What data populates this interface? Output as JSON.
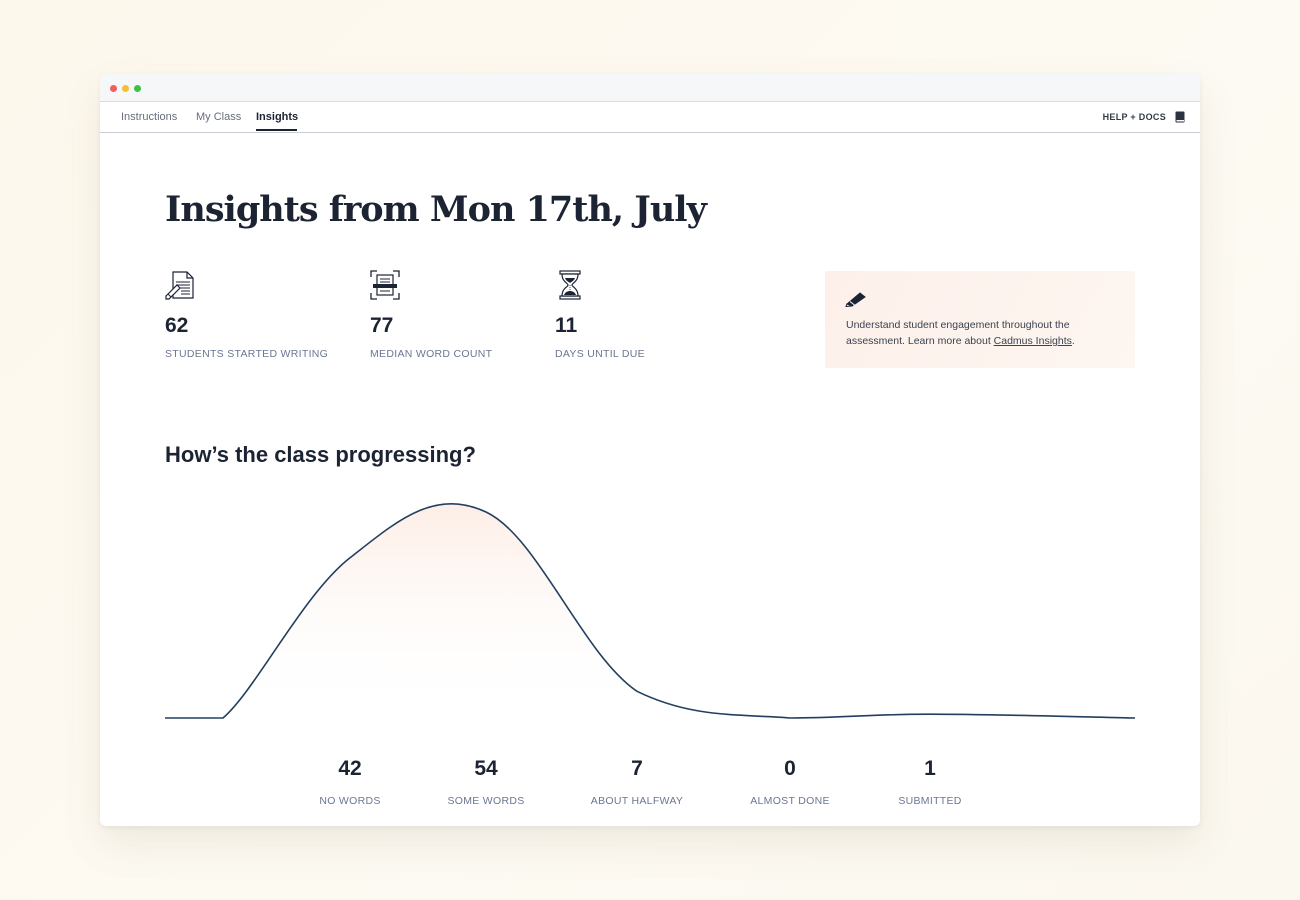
{
  "window": {
    "dots": [
      "close",
      "minimize",
      "maximize"
    ]
  },
  "nav": {
    "tabs": [
      {
        "label": "Instructions"
      },
      {
        "label": "My Class"
      },
      {
        "label": "Insights",
        "active": true
      }
    ],
    "help_label": "HELP + DOCS",
    "help_icon": "book-icon"
  },
  "main": {
    "title": "Insights from Mon 17th, July",
    "stats": [
      {
        "icon": "document-pen-icon",
        "value": "62",
        "label": "STUDENTS STARTED WRITING"
      },
      {
        "icon": "document-scan-icon",
        "value": "77",
        "label": "MEDIAN WORD COUNT"
      },
      {
        "icon": "hourglass-icon",
        "value": "11",
        "label": "DAYS UNTIL DUE"
      }
    ],
    "info_card": {
      "icon": "pencil-icon",
      "text_before": "Understand student engagement throughout the assessment. Learn more about ",
      "link_text": "Cadmus Insights",
      "text_after": "."
    },
    "section_title": "How’s the class progressing?"
  },
  "chart_data": {
    "type": "area",
    "categories": [
      "NO WORDS",
      "SOME WORDS",
      "ABOUT HALFWAY",
      "ALMOST DONE",
      "SUBMITTED"
    ],
    "values": [
      42,
      54,
      7,
      0,
      1
    ],
    "labels": [
      "42",
      "54",
      "7",
      "0",
      "1"
    ],
    "title": "",
    "xlabel": "",
    "ylabel": "",
    "colors": {
      "line": "#22405e",
      "fill_top": "#fdeee6"
    }
  }
}
